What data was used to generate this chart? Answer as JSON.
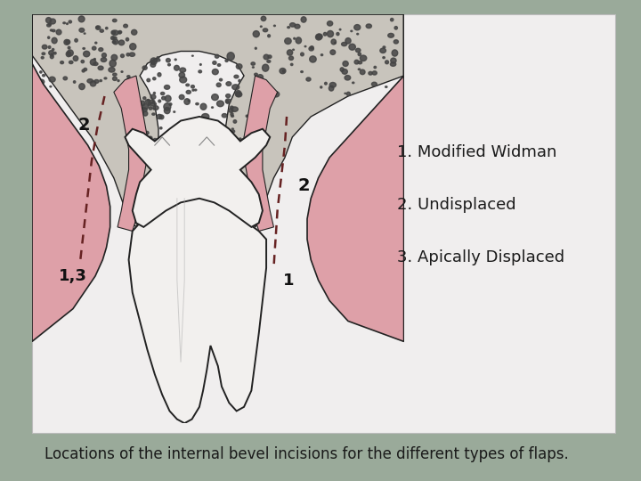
{
  "background_color": "#9aaa9a",
  "image_bg": "#f0eeee",
  "caption": "Locations of the internal bevel incisions for the different types of flaps.",
  "caption_fontsize": 12,
  "caption_color": "#1a1a1a",
  "legend_items": [
    "1. Modified Widman",
    "2. Undisplaced",
    "3. Apically Displaced"
  ],
  "legend_fontsize": 13,
  "legend_color": "#1a1a1a",
  "label_1_3": "1,3",
  "label_2_left": "2",
  "label_2_right": "2",
  "label_1_bottom": "1",
  "pink_color": "#dea0a8",
  "bone_color": "#c8c4bc",
  "tooth_color": "#f2f0ee",
  "dashed_color": "#662222",
  "outline_color": "#222222",
  "dot_color": "#444444"
}
